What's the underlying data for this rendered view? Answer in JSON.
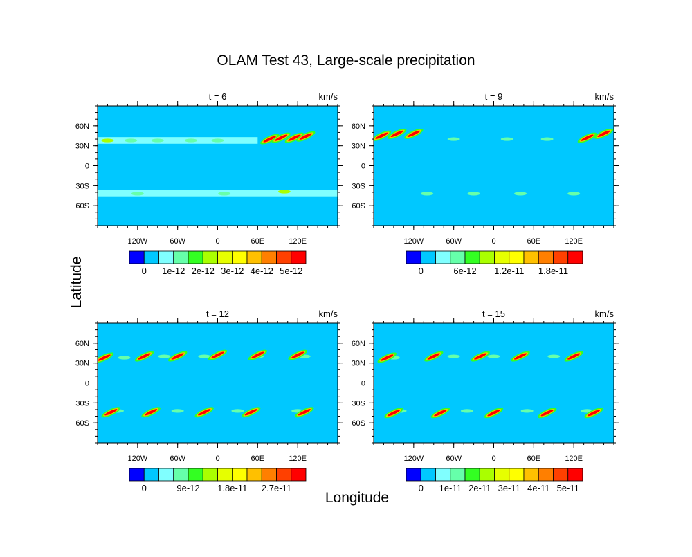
{
  "title": "OLAM Test 43, Large-scale precipitation",
  "xlabel": "Longitude",
  "ylabel": "Latitude",
  "palette": [
    "#0000ff",
    "#00c8ff",
    "#80ffff",
    "#66ffaa",
    "#33ff22",
    "#aaff00",
    "#e6ff00",
    "#ffff00",
    "#ffc000",
    "#ff7f00",
    "#ff4000",
    "#ff0000"
  ],
  "background_color": "#00c8ff",
  "chart_data": [
    {
      "type": "heatmap",
      "panel_title": "t = 6",
      "units": "km/s",
      "xlim": [
        -180,
        180
      ],
      "ylim": [
        -90,
        90
      ],
      "x_ticks": [
        "120W",
        "60W",
        "0",
        "60E",
        "120E"
      ],
      "x_tick_values": [
        -120,
        -60,
        0,
        60,
        120
      ],
      "y_ticks": [
        "60N",
        "30N",
        "0",
        "30S",
        "60S"
      ],
      "y_tick_values": [
        60,
        30,
        0,
        -30,
        -60
      ],
      "colorbar_labels": [
        {
          "label": "0",
          "index": 1
        },
        {
          "label": "1e-12",
          "index": 3
        },
        {
          "label": "2e-12",
          "index": 5
        },
        {
          "label": "3e-12",
          "index": 7
        },
        {
          "label": "4e-12",
          "index": 9
        },
        {
          "label": "5e-12",
          "index": 11
        }
      ],
      "bands": [
        {
          "lat_center": 38,
          "half_width": 5,
          "lon_start": -180,
          "lon_end": 60,
          "level": 2
        },
        {
          "lat_center": -41,
          "half_width": 5,
          "lon_start": -180,
          "lon_end": 180,
          "level": 2
        }
      ],
      "cells": [
        {
          "lon": -165,
          "lat": 38,
          "level": 5
        },
        {
          "lon": -130,
          "lat": 38,
          "level": 3
        },
        {
          "lon": -90,
          "lat": 38,
          "level": 3
        },
        {
          "lon": -40,
          "lat": 38,
          "level": 3
        },
        {
          "lon": 0,
          "lat": 38,
          "level": 3
        },
        {
          "lon": 100,
          "lat": -39,
          "level": 5
        },
        {
          "lon": -120,
          "lat": -42,
          "level": 3
        },
        {
          "lon": 10,
          "lat": -42,
          "level": 3
        }
      ],
      "streaks": [
        {
          "lon": 78,
          "lat": 40,
          "level": 11
        },
        {
          "lon": 95,
          "lat": 42,
          "level": 11
        },
        {
          "lon": 115,
          "lat": 42,
          "level": 11
        },
        {
          "lon": 132,
          "lat": 44,
          "level": 11
        }
      ]
    },
    {
      "type": "heatmap",
      "panel_title": "t = 9",
      "units": "km/s",
      "xlim": [
        -180,
        180
      ],
      "ylim": [
        -90,
        90
      ],
      "x_ticks": [
        "120W",
        "60W",
        "0",
        "60E",
        "120E"
      ],
      "x_tick_values": [
        -120,
        -60,
        0,
        60,
        120
      ],
      "y_ticks": [
        "60N",
        "30N",
        "0",
        "30S",
        "60S"
      ],
      "y_tick_values": [
        60,
        30,
        0,
        -30,
        -60
      ],
      "colorbar_labels": [
        {
          "label": "0",
          "index": 1
        },
        {
          "label": "6e-12",
          "index": 4
        },
        {
          "label": "1.2e-11",
          "index": 7
        },
        {
          "label": "1.8e-11",
          "index": 10
        }
      ],
      "bands": [],
      "cells": [
        {
          "lon": -60,
          "lat": 40,
          "level": 3
        },
        {
          "lon": 20,
          "lat": 40,
          "level": 3
        },
        {
          "lon": 80,
          "lat": 40,
          "level": 3
        },
        {
          "lon": -100,
          "lat": -42,
          "level": 3
        },
        {
          "lon": -30,
          "lat": -42,
          "level": 3
        },
        {
          "lon": 40,
          "lat": -42,
          "level": 3
        },
        {
          "lon": 120,
          "lat": -42,
          "level": 3
        }
      ],
      "streaks": [
        {
          "lon": -168,
          "lat": 45,
          "level": 11
        },
        {
          "lon": -145,
          "lat": 48,
          "level": 11
        },
        {
          "lon": -120,
          "lat": 48,
          "level": 11
        },
        {
          "lon": 140,
          "lat": 42,
          "level": 11
        },
        {
          "lon": 165,
          "lat": 48,
          "level": 11
        }
      ]
    },
    {
      "type": "heatmap",
      "panel_title": "t = 12",
      "units": "km/s",
      "xlim": [
        -180,
        180
      ],
      "ylim": [
        -90,
        90
      ],
      "x_ticks": [
        "120W",
        "60W",
        "0",
        "60E",
        "120E"
      ],
      "x_tick_values": [
        -120,
        -60,
        0,
        60,
        120
      ],
      "y_ticks": [
        "60N",
        "30N",
        "0",
        "30S",
        "60S"
      ],
      "y_tick_values": [
        60,
        30,
        0,
        -30,
        -60
      ],
      "colorbar_labels": [
        {
          "label": "0",
          "index": 1
        },
        {
          "label": "9e-12",
          "index": 4
        },
        {
          "label": "1.8e-11",
          "index": 7
        },
        {
          "label": "2.7e-11",
          "index": 10
        }
      ],
      "bands": [],
      "cells": [
        {
          "lon": -140,
          "lat": 38,
          "level": 3
        },
        {
          "lon": -80,
          "lat": 40,
          "level": 3
        },
        {
          "lon": -20,
          "lat": 40,
          "level": 3
        },
        {
          "lon": 60,
          "lat": 40,
          "level": 3
        },
        {
          "lon": 130,
          "lat": 40,
          "level": 3
        },
        {
          "lon": -150,
          "lat": -42,
          "level": 3
        },
        {
          "lon": -60,
          "lat": -42,
          "level": 3
        },
        {
          "lon": 30,
          "lat": -42,
          "level": 3
        },
        {
          "lon": 120,
          "lat": -42,
          "level": 3
        }
      ],
      "streaks": [
        {
          "lon": -170,
          "lat": 38,
          "level": 11
        },
        {
          "lon": -110,
          "lat": 40,
          "level": 11
        },
        {
          "lon": -60,
          "lat": 40,
          "level": 11
        },
        {
          "lon": 0,
          "lat": 42,
          "level": 11
        },
        {
          "lon": 60,
          "lat": 42,
          "level": 11
        },
        {
          "lon": 120,
          "lat": 42,
          "level": 11
        },
        {
          "lon": -160,
          "lat": -44,
          "level": 11
        },
        {
          "lon": -100,
          "lat": -44,
          "level": 11
        },
        {
          "lon": -20,
          "lat": -44,
          "level": 11
        },
        {
          "lon": 50,
          "lat": -44,
          "level": 11
        },
        {
          "lon": 130,
          "lat": -44,
          "level": 11
        }
      ]
    },
    {
      "type": "heatmap",
      "panel_title": "t = 15",
      "units": "km/s",
      "xlim": [
        -180,
        180
      ],
      "ylim": [
        -90,
        90
      ],
      "x_ticks": [
        "120W",
        "60W",
        "0",
        "60E",
        "120E"
      ],
      "x_tick_values": [
        -120,
        -60,
        0,
        60,
        120
      ],
      "y_ticks": [
        "60N",
        "30N",
        "0",
        "30S",
        "60S"
      ],
      "y_tick_values": [
        60,
        30,
        0,
        -30,
        -60
      ],
      "colorbar_labels": [
        {
          "label": "0",
          "index": 1
        },
        {
          "label": "1e-11",
          "index": 3
        },
        {
          "label": "2e-11",
          "index": 5
        },
        {
          "label": "3e-11",
          "index": 7
        },
        {
          "label": "4e-11",
          "index": 9
        },
        {
          "label": "5e-11",
          "index": 11
        }
      ],
      "bands": [],
      "cells": [
        {
          "lon": -150,
          "lat": 38,
          "level": 3
        },
        {
          "lon": -60,
          "lat": 40,
          "level": 3
        },
        {
          "lon": 0,
          "lat": 40,
          "level": 3
        },
        {
          "lon": 90,
          "lat": 40,
          "level": 3
        },
        {
          "lon": -140,
          "lat": -42,
          "level": 3
        },
        {
          "lon": -40,
          "lat": -42,
          "level": 3
        },
        {
          "lon": 50,
          "lat": -42,
          "level": 3
        },
        {
          "lon": 140,
          "lat": -42,
          "level": 3
        }
      ],
      "streaks": [
        {
          "lon": -160,
          "lat": 38,
          "level": 11
        },
        {
          "lon": -90,
          "lat": 40,
          "level": 11
        },
        {
          "lon": -20,
          "lat": 40,
          "level": 11
        },
        {
          "lon": 40,
          "lat": 40,
          "level": 11
        },
        {
          "lon": 120,
          "lat": 40,
          "level": 11
        },
        {
          "lon": -150,
          "lat": -45,
          "level": 11
        },
        {
          "lon": -80,
          "lat": -45,
          "level": 11
        },
        {
          "lon": 0,
          "lat": -45,
          "level": 11
        },
        {
          "lon": 80,
          "lat": -45,
          "level": 11
        },
        {
          "lon": 150,
          "lat": -45,
          "level": 11
        }
      ]
    }
  ]
}
